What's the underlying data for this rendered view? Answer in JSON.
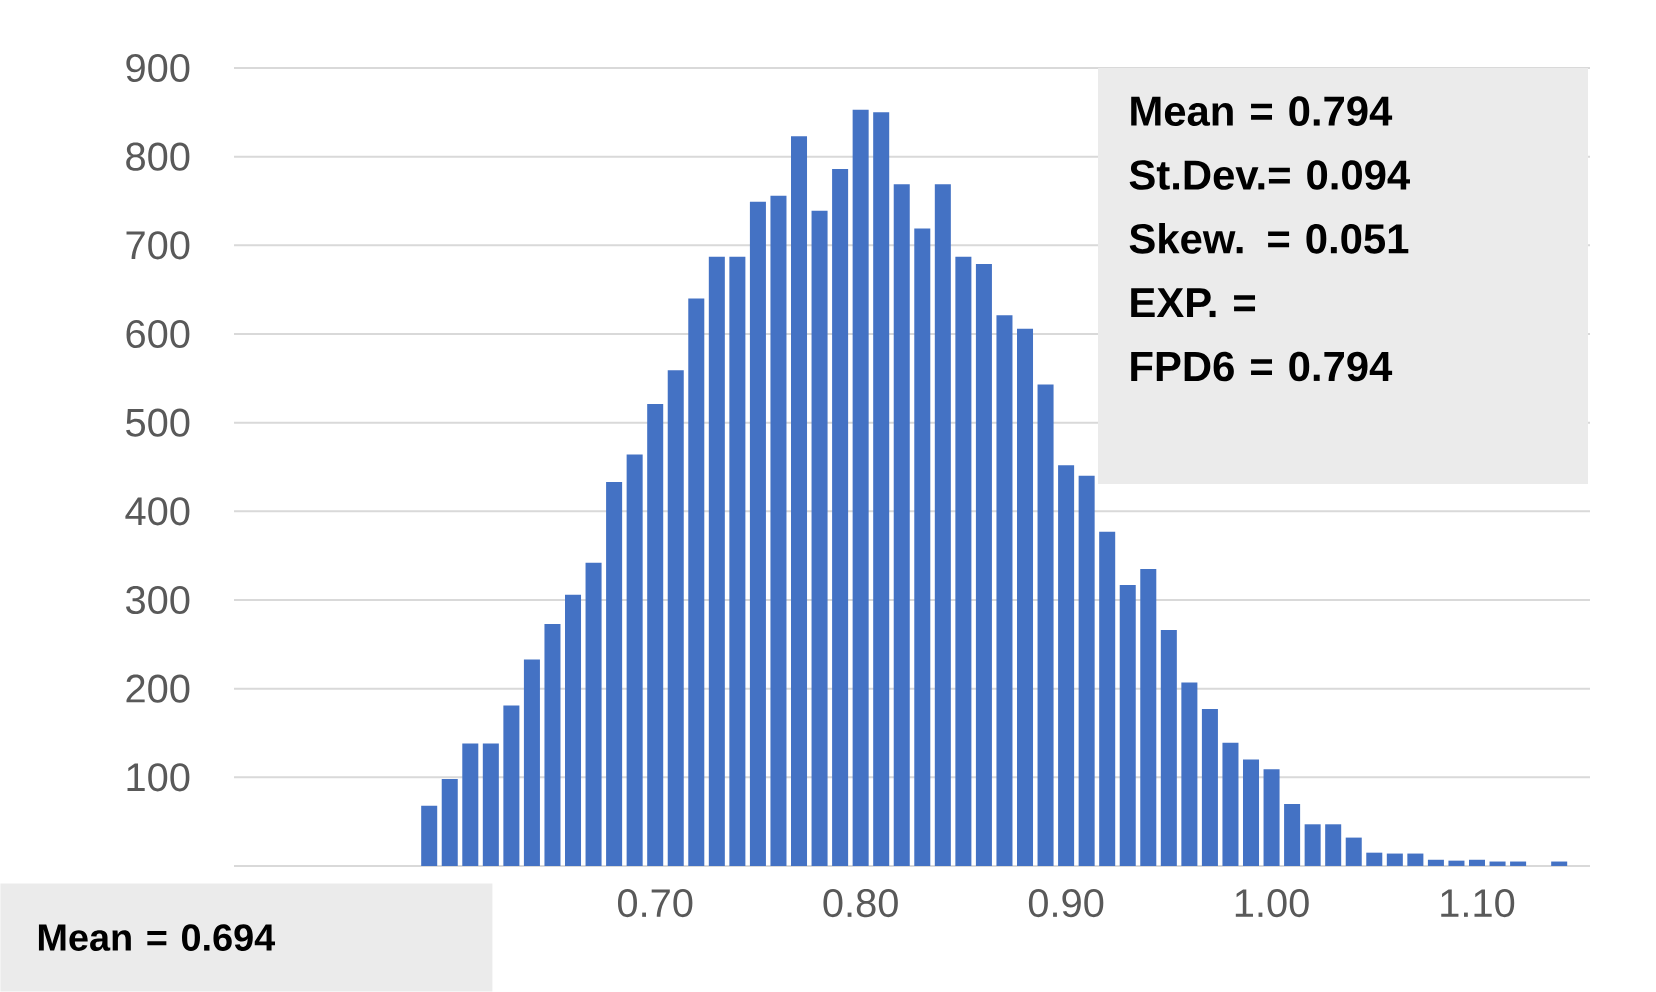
{
  "chart_data": {
    "type": "histogram",
    "bins": [
      0.585,
      0.595,
      0.605,
      0.615,
      0.625,
      0.635,
      0.645,
      0.655,
      0.665,
      0.675,
      0.685,
      0.695,
      0.705,
      0.715,
      0.725,
      0.735,
      0.745,
      0.755,
      0.765,
      0.775,
      0.785,
      0.795,
      0.805,
      0.815,
      0.825,
      0.835,
      0.845,
      0.855,
      0.865,
      0.875,
      0.885,
      0.895,
      0.905,
      0.915,
      0.925,
      0.935,
      0.945,
      0.955,
      0.965,
      0.975,
      0.985,
      0.995,
      1.005,
      1.015,
      1.025,
      1.035,
      1.045,
      1.055,
      1.065,
      1.075,
      1.085,
      1.095,
      1.105,
      1.115,
      1.125,
      1.135,
      1.145
    ],
    "values": [
      68,
      98,
      138,
      138,
      181,
      233,
      273,
      306,
      342,
      433,
      464,
      521,
      559,
      640,
      687,
      687,
      749,
      756,
      823,
      739,
      786,
      853,
      850,
      769,
      719,
      769,
      687,
      679,
      621,
      606,
      543,
      452,
      440,
      377,
      317,
      335,
      266,
      207,
      177,
      139,
      120,
      109,
      70,
      47,
      47,
      32,
      15,
      14,
      14,
      7,
      6,
      7,
      5,
      5,
      0,
      5
    ],
    "color": "#4472c4",
    "xlim": [
      0.495,
      1.155
    ],
    "xticks": [
      {
        "value": 0.7,
        "label": "0.70"
      },
      {
        "value": 0.8,
        "label": "0.80"
      },
      {
        "value": 0.9,
        "label": "0.90"
      },
      {
        "value": 1.0,
        "label": "1.00"
      },
      {
        "value": 1.1,
        "label": "1.10"
      }
    ],
    "ylim": [
      0,
      900
    ],
    "yticks": [
      100,
      200,
      300,
      400,
      500,
      600,
      700,
      800,
      900
    ],
    "grid": "y",
    "annotations": [
      "Mean = 0.794",
      "St.Dev.= 0.094",
      "Skew. = 0.051",
      "EXP. =",
      "FPD6 = 0.794",
      "Mean = 0.694"
    ]
  }
}
